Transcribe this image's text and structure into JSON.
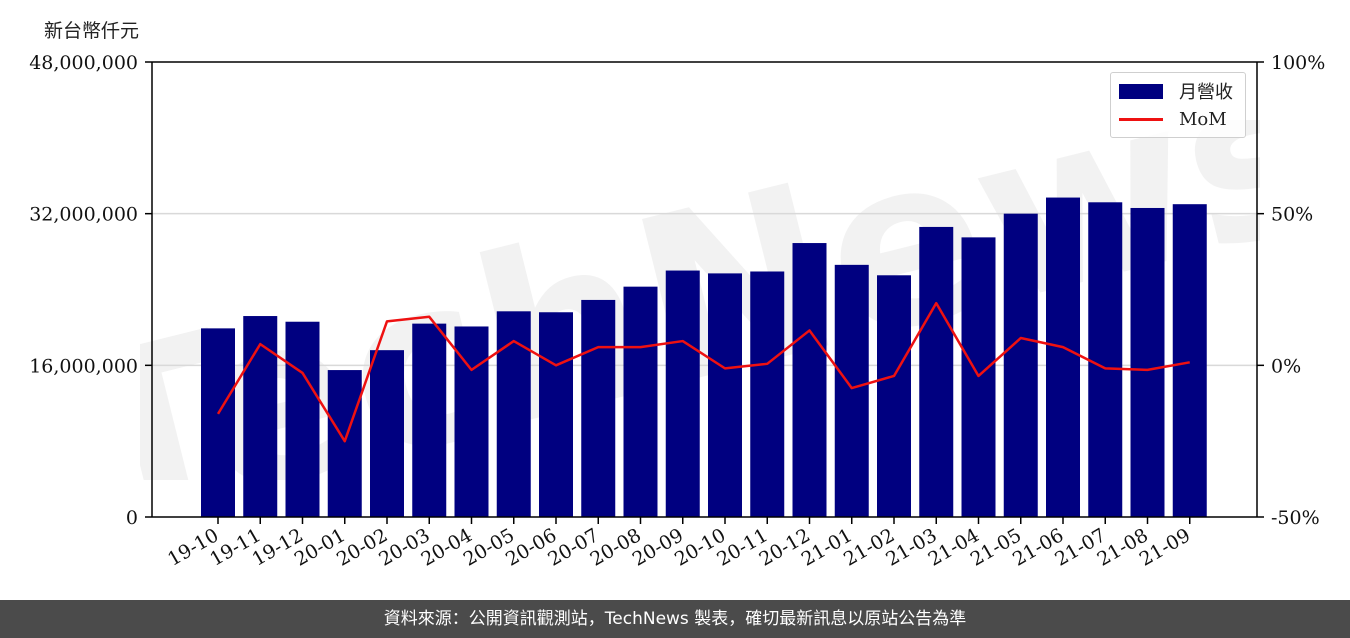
{
  "unit_label": "新台幣仟元",
  "footer": "資料來源：公開資訊觀測站，TechNews 製表，確切最新訊息以原站公告為準",
  "watermark": "TechNews",
  "colors": {
    "bar": "#000080",
    "line": "#ee1111",
    "grid": "#d9d9d9",
    "footer_bg": "#4b4b4b"
  },
  "legend": {
    "bar_label": "月營收",
    "line_label": "MoM",
    "placement": "upper-right"
  },
  "chart_data": {
    "type": "bar+line",
    "categories": [
      "19-10",
      "19-11",
      "19-12",
      "20-01",
      "20-02",
      "20-03",
      "20-04",
      "20-05",
      "20-06",
      "20-07",
      "20-08",
      "20-09",
      "20-10",
      "20-11",
      "20-12",
      "21-01",
      "21-02",
      "21-03",
      "21-04",
      "21-05",
      "21-06",
      "21-07",
      "21-08",
      "21-09"
    ],
    "series": [
      {
        "name": "月營收",
        "type": "bar",
        "axis": "left",
        "values": [
          19900000,
          21200000,
          20600000,
          15500000,
          17600000,
          20400000,
          20100000,
          21700000,
          21600000,
          22900000,
          24300000,
          26000000,
          25700000,
          25900000,
          28900000,
          26600000,
          25500000,
          30600000,
          29500000,
          32000000,
          33700000,
          33200000,
          32600000,
          33000000
        ]
      },
      {
        "name": "MoM",
        "type": "line",
        "axis": "right",
        "values": [
          -16,
          7,
          -2.5,
          -25,
          14.5,
          16,
          -1.5,
          8,
          0,
          6,
          6,
          8,
          -1,
          0.5,
          11.5,
          -7.5,
          -3.5,
          20.5,
          -3.5,
          9,
          6,
          -1,
          -1.5,
          1
        ]
      }
    ],
    "y_left": {
      "ylim": [
        0,
        48000000
      ],
      "ticks": [
        "0",
        "16,000,000",
        "32,000,000",
        "48,000,000"
      ],
      "tick_values": [
        0,
        16000000,
        32000000,
        48000000
      ]
    },
    "y_right": {
      "ylim": [
        -50,
        100
      ],
      "ticks": [
        "-50%",
        "0%",
        "50%",
        "100%"
      ],
      "tick_values": [
        -50,
        0,
        50,
        100
      ]
    },
    "grid": "horizontal"
  }
}
